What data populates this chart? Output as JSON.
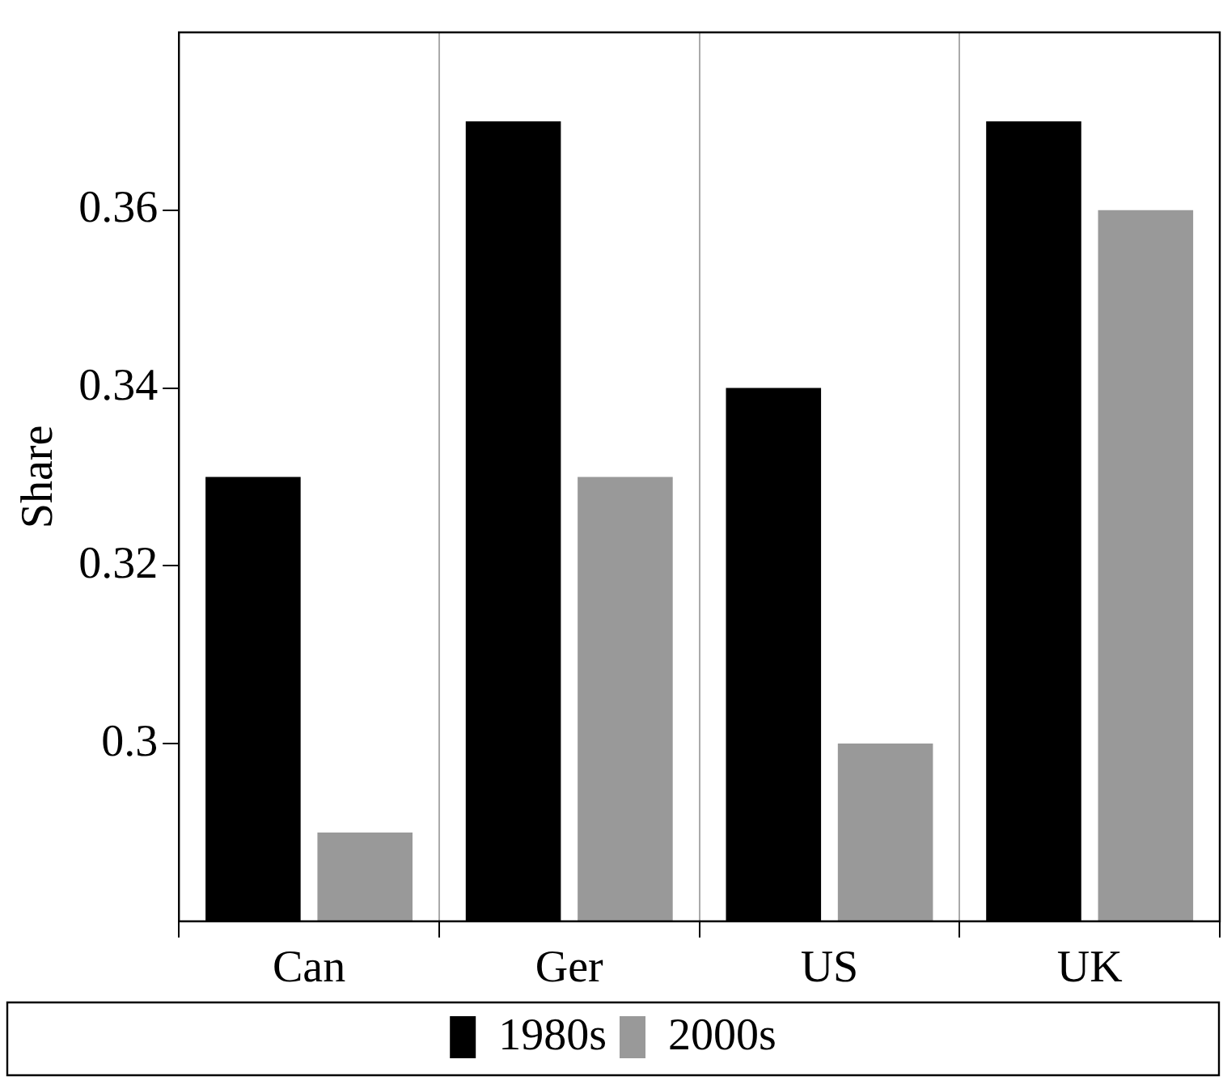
{
  "chart_data": {
    "type": "bar",
    "ylabel": "Share",
    "categories": [
      "Can",
      "Ger",
      "US",
      "UK"
    ],
    "series": [
      {
        "name": "1980s",
        "color": "#000000",
        "values": [
          0.33,
          0.37,
          0.34,
          0.37
        ]
      },
      {
        "name": "2000s",
        "color": "#999999",
        "values": [
          0.29,
          0.33,
          0.3,
          0.36
        ]
      }
    ],
    "ylim": [
      0.28,
      0.38
    ],
    "yticks": [
      0.3,
      0.32,
      0.34,
      0.36
    ],
    "grid": "x",
    "legend": "bottom"
  }
}
